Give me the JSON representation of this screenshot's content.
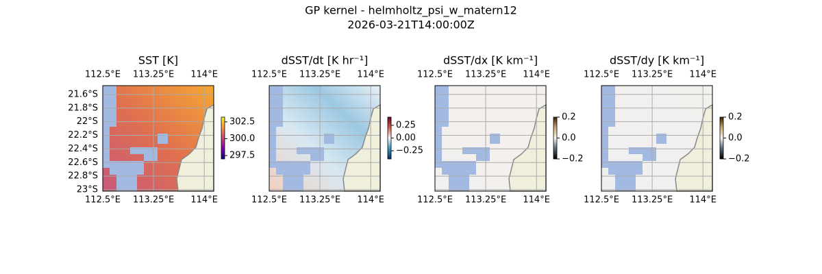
{
  "title": "GP kernel - helmholtz_psi_w_matern12",
  "subtitle": "2026-03-21T14:00:00Z",
  "map": {
    "xlim": [
      112.5,
      114.14
    ],
    "ylim": [
      -23.02,
      -21.47
    ],
    "xticks": [
      {
        "value": 112.5,
        "label": "112.5°E"
      },
      {
        "value": 113.25,
        "label": "113.25°E"
      },
      {
        "value": 114,
        "label": "114°E"
      }
    ],
    "yticks": [
      {
        "value": -21.6,
        "label": "21.6°S"
      },
      {
        "value": -21.8,
        "label": "21.8°S"
      },
      {
        "value": -22,
        "label": "22°S"
      },
      {
        "value": -22.2,
        "label": "22.2°S"
      },
      {
        "value": -22.4,
        "label": "22.4°S"
      },
      {
        "value": -22.6,
        "label": "22.6°S"
      },
      {
        "value": -22.8,
        "label": "22.8°S"
      },
      {
        "value": -23,
        "label": "23°S"
      }
    ]
  },
  "panels": [
    {
      "title": "SST [K]",
      "clim": [
        297,
        303.2
      ],
      "colors": [
        "#0d0887",
        "#7e03a8",
        "#cc4778",
        "#f89540",
        "#f0f921"
      ],
      "ticks": [
        297.5,
        {
          "value": 300,
          "label": "300.0"
        },
        302.5
      ]
    },
    {
      "title": "dSST/dt [K hr⁻¹]",
      "clim": [
        -0.41,
        0.41
      ],
      "colors": [
        "#053061",
        "#4393c3",
        "#f7f7f7",
        "#d6604d",
        "#67001f"
      ],
      "ticks": [
        {
          "value": -0.25,
          "label": "−0.25"
        },
        {
          "value": 0,
          "label": "0.00"
        },
        0.25
      ]
    },
    {
      "title": "dSST/dx [K km⁻¹]",
      "clim": [
        -0.2,
        0.2
      ],
      "colors": [
        "#000000",
        "#5a6a80",
        "#f7f5f0",
        "#c8a870",
        "#3a2000"
      ],
      "ticks": [
        {
          "value": -0.2,
          "label": "−0.2"
        },
        {
          "value": 0,
          "label": "0.0"
        },
        0.2
      ]
    },
    {
      "title": "dSST/dy [K km⁻¹]",
      "clim": [
        -0.2,
        0.2
      ],
      "colors": [
        "#000000",
        "#5a6a80",
        "#f7f5f0",
        "#c8a870",
        "#3a2000"
      ],
      "ticks": [
        {
          "value": -0.2,
          "label": "−0.2"
        },
        {
          "value": 0,
          "label": "0.0"
        },
        0.2
      ]
    }
  ]
}
